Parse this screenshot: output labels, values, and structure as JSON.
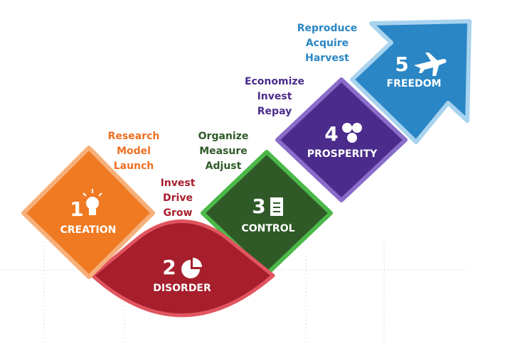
{
  "stages": [
    {
      "number": "1",
      "label": "CREATION",
      "actions": [
        "Research",
        "Model",
        "Launch"
      ]
    },
    {
      "number": "2",
      "label": "DISORDER",
      "actions": [
        "Invest",
        "Drive",
        "Grow"
      ]
    },
    {
      "number": "3",
      "label": "CONTROL",
      "actions": [
        "Organize",
        "Measure",
        "Adjust"
      ]
    },
    {
      "number": "4",
      "label": "PROSPERITY",
      "actions": [
        "Economize",
        "Invest",
        "Repay"
      ]
    },
    {
      "number": "5",
      "label": "FREEDOM",
      "actions": [
        "Reproduce",
        "Acquire",
        "Harvest"
      ]
    }
  ]
}
